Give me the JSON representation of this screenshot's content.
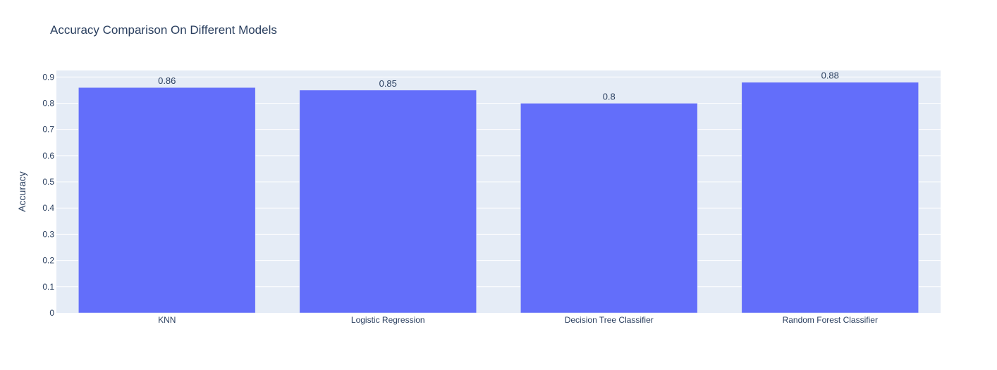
{
  "chart_data": {
    "type": "bar",
    "title": "Accuracy Comparison On Different Models",
    "xlabel": "",
    "ylabel": "Accuracy",
    "categories": [
      "KNN",
      "Logistic Regression",
      "Decision Tree Classifier",
      "Random Forest Classifier"
    ],
    "values": [
      0.86,
      0.85,
      0.8,
      0.88
    ],
    "data_labels": [
      "0.86",
      "0.85",
      "0.8",
      "0.88"
    ],
    "yticks": [
      "0",
      "0.1",
      "0.2",
      "0.3",
      "0.4",
      "0.5",
      "0.6",
      "0.7",
      "0.8",
      "0.9"
    ],
    "ylim": [
      0,
      0.925
    ],
    "grid": true,
    "legend": "none",
    "colors": {
      "bar": "#636efa",
      "plot_bg": "#e5ecf6",
      "grid": "#ffffff",
      "text": "#2a3f5f"
    }
  }
}
